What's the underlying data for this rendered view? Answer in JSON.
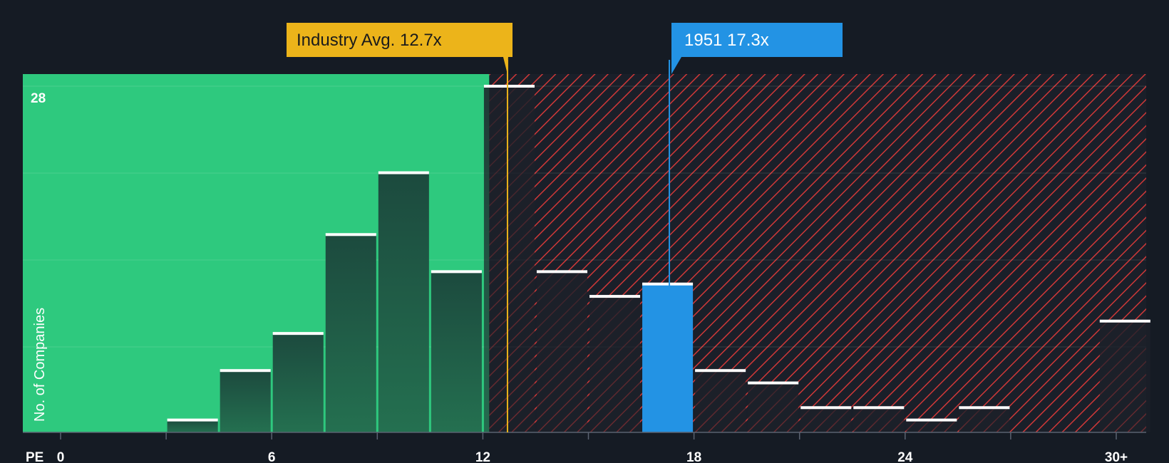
{
  "chart_data": {
    "type": "bar",
    "title": "",
    "xlabel": "PE",
    "ylabel": "No. of Companies",
    "xlim": [
      -1.5,
      30.5
    ],
    "ylim": [
      0,
      28
    ],
    "bin_width": 1.5,
    "x_ticks": [
      {
        "value": 0,
        "label": "0"
      },
      {
        "value": 6,
        "label": "6"
      },
      {
        "value": 12,
        "label": "12"
      },
      {
        "value": 18,
        "label": "18"
      },
      {
        "value": 24,
        "label": "24"
      },
      {
        "value": 30,
        "label": "30+"
      }
    ],
    "y_max_label": "28",
    "bins": [
      {
        "x": 3.75,
        "value": 1,
        "highlight": false
      },
      {
        "x": 5.25,
        "value": 5,
        "highlight": false
      },
      {
        "x": 6.75,
        "value": 8,
        "highlight": false
      },
      {
        "x": 8.25,
        "value": 16,
        "highlight": false
      },
      {
        "x": 9.75,
        "value": 21,
        "highlight": false
      },
      {
        "x": 11.25,
        "value": 13,
        "highlight": false
      },
      {
        "x": 12.75,
        "value": 28,
        "highlight": false
      },
      {
        "x": 14.25,
        "value": 13,
        "highlight": false
      },
      {
        "x": 15.75,
        "value": 11,
        "highlight": false
      },
      {
        "x": 17.25,
        "value": 12,
        "highlight": true
      },
      {
        "x": 18.75,
        "value": 5,
        "highlight": false
      },
      {
        "x": 20.25,
        "value": 4,
        "highlight": false
      },
      {
        "x": 21.75,
        "value": 2,
        "highlight": false
      },
      {
        "x": 23.25,
        "value": 2,
        "highlight": false
      },
      {
        "x": 24.75,
        "value": 1,
        "highlight": false
      },
      {
        "x": 26.25,
        "value": 2,
        "highlight": false
      },
      {
        "x": 30.25,
        "value": 9,
        "highlight": false
      }
    ],
    "industry_avg": {
      "value": 12.7,
      "label": "Industry Avg. 12.7x"
    },
    "company": {
      "value": 17.3,
      "label": "1951 17.3x"
    },
    "fair_split": 12.2,
    "colors": {
      "background": "#151b24",
      "green_zone": "#2ec97e",
      "red_hatch": "#d23a3a",
      "bar_dark": "#1d4a3c",
      "bar_cap": "#ffffff",
      "highlight": "#2393e4",
      "industry": "#ecb41a"
    }
  }
}
